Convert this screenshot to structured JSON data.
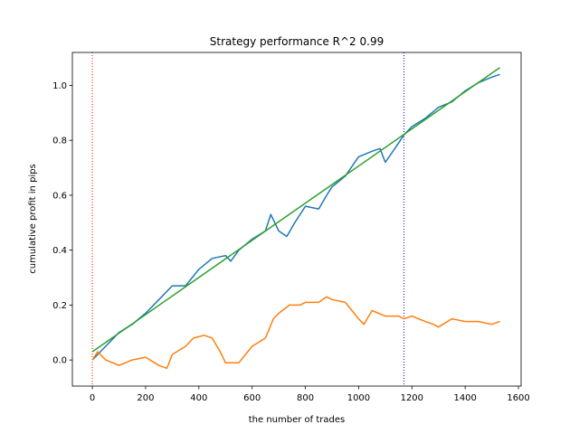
{
  "chart_data": {
    "type": "line",
    "title": "Strategy performance R^2 0.99",
    "xlabel": "the number of trades",
    "ylabel": "cumulative profit in pips",
    "xlim": [
      -75,
      1610
    ],
    "ylim": [
      -0.095,
      1.12
    ],
    "xticks": [
      0,
      200,
      400,
      600,
      800,
      1000,
      1200,
      1400,
      1600
    ],
    "yticks": [
      0.0,
      0.2,
      0.4,
      0.6,
      0.8,
      1.0
    ],
    "grid": false,
    "legend": "none",
    "vlines": [
      {
        "x": 0,
        "color": "#ff0000",
        "style": "dotted"
      },
      {
        "x": 1170,
        "color": "#0000ff",
        "style": "dotted"
      }
    ],
    "series": [
      {
        "color": "#1f77b4",
        "x": [
          0,
          50,
          100,
          150,
          200,
          250,
          300,
          350,
          400,
          450,
          500,
          520,
          550,
          600,
          650,
          670,
          700,
          730,
          760,
          800,
          850,
          880,
          900,
          950,
          1000,
          1050,
          1080,
          1100,
          1150,
          1170,
          1200,
          1250,
          1300,
          1350,
          1400,
          1450,
          1500,
          1530
        ],
        "y": [
          0.0,
          0.05,
          0.1,
          0.13,
          0.17,
          0.22,
          0.27,
          0.27,
          0.33,
          0.37,
          0.38,
          0.36,
          0.4,
          0.44,
          0.47,
          0.53,
          0.47,
          0.45,
          0.5,
          0.56,
          0.55,
          0.6,
          0.63,
          0.67,
          0.74,
          0.76,
          0.77,
          0.72,
          0.79,
          0.82,
          0.85,
          0.88,
          0.92,
          0.94,
          0.98,
          1.01,
          1.03,
          1.04
        ]
      },
      {
        "color": "#ff7f0e",
        "x": [
          0,
          20,
          50,
          100,
          150,
          200,
          250,
          280,
          300,
          350,
          380,
          420,
          450,
          480,
          500,
          550,
          600,
          650,
          680,
          700,
          740,
          780,
          800,
          850,
          880,
          900,
          950,
          1000,
          1020,
          1050,
          1100,
          1150,
          1170,
          1200,
          1250,
          1280,
          1300,
          1350,
          1400,
          1450,
          1500,
          1530
        ],
        "y": [
          0.0,
          0.03,
          0.0,
          -0.02,
          0.0,
          0.01,
          -0.02,
          -0.03,
          0.02,
          0.05,
          0.08,
          0.09,
          0.08,
          0.03,
          -0.01,
          -0.01,
          0.05,
          0.08,
          0.15,
          0.17,
          0.2,
          0.2,
          0.21,
          0.21,
          0.23,
          0.22,
          0.21,
          0.15,
          0.13,
          0.18,
          0.16,
          0.16,
          0.15,
          0.16,
          0.14,
          0.13,
          0.12,
          0.15,
          0.14,
          0.14,
          0.13,
          0.14
        ]
      },
      {
        "color": "#2ca02c",
        "x": [
          0,
          1530
        ],
        "y": [
          0.03,
          1.065
        ]
      }
    ]
  }
}
